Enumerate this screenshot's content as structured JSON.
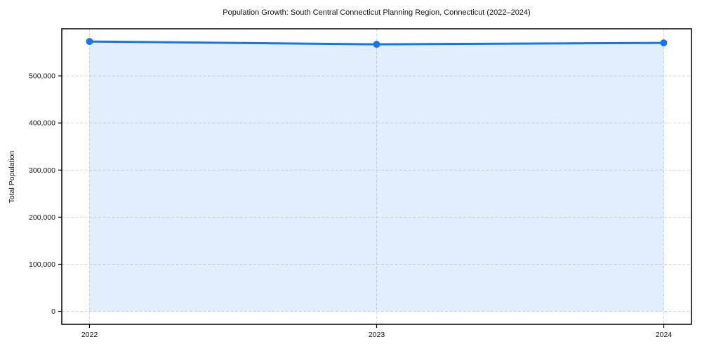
{
  "chart_data": {
    "type": "area",
    "title": "Population Growth: South Central Connecticut Planning Region, Connecticut (2022–2024)",
    "xlabel": "",
    "ylabel": "Total Population",
    "x": [
      "2022",
      "2023",
      "2024"
    ],
    "series": [
      {
        "name": "Total Population",
        "values": [
          573000,
          567000,
          570000
        ]
      }
    ],
    "yticks": [
      0,
      100000,
      200000,
      300000,
      400000,
      500000
    ],
    "ylim": [
      -27500,
      600000
    ],
    "grid": true,
    "grid_style": "dashed",
    "legend_position": "none",
    "colors": {
      "line": "#1a73e8",
      "marker": "#1a73e8",
      "fill": "rgba(26,115,232,0.12)",
      "grid": "#d9d9d9",
      "axis_border": "#000000",
      "text": "#111111",
      "background": "#ffffff"
    }
  }
}
